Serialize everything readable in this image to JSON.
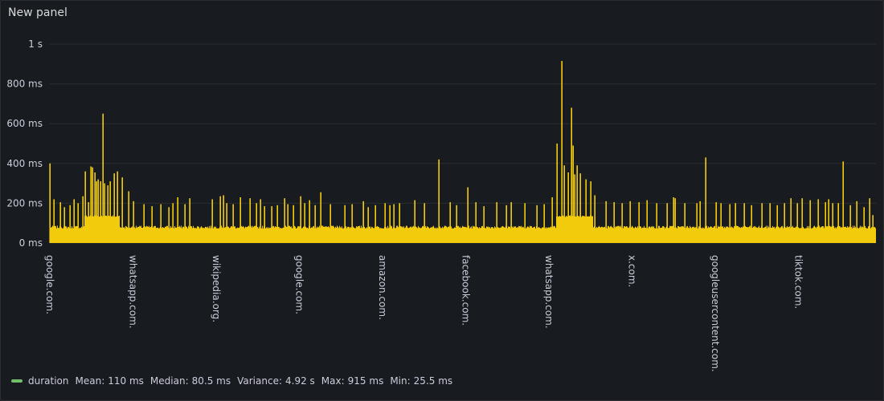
{
  "panel": {
    "title": "New panel"
  },
  "legend": {
    "series_name": "duration",
    "series_color": "#73bf69",
    "stats": [
      {
        "label": "Mean:",
        "value": "110 ms"
      },
      {
        "label": "Median:",
        "value": "80.5 ms"
      },
      {
        "label": "Variance:",
        "value": "4.92 s"
      },
      {
        "label": "Max:",
        "value": "915 ms"
      },
      {
        "label": "Min:",
        "value": "25.5 ms"
      }
    ]
  },
  "chart_data": {
    "type": "bar",
    "fill_color": "#f2cc0c",
    "ylim": [
      0,
      1000
    ],
    "y_ticks": [
      {
        "value": 0,
        "label": "0 ms"
      },
      {
        "value": 200,
        "label": "200 ms"
      },
      {
        "value": 400,
        "label": "400 ms"
      },
      {
        "value": 600,
        "label": "600 ms"
      },
      {
        "value": 800,
        "label": "800 ms"
      },
      {
        "value": 1000,
        "label": "1 s"
      }
    ],
    "x_tick_labels": [
      "google.com.",
      "whatsapp.com.",
      "wikipedia.org.",
      "google.com.",
      "amazon.com.",
      "facebook.com.",
      "whatsapp.com.",
      "x.com.",
      "googleusercontent.com.",
      "tiktok.com."
    ],
    "baseline_ms": 80,
    "plateaus": [
      {
        "from_index": 43,
        "to_index": 86,
        "value": 135
      },
      {
        "from_index": 630,
        "to_index": 675,
        "value": 135
      }
    ],
    "spikes": [
      [
        0,
        400
      ],
      [
        5,
        220
      ],
      [
        13,
        205
      ],
      [
        18,
        180
      ],
      [
        25,
        190
      ],
      [
        30,
        220
      ],
      [
        35,
        200
      ],
      [
        41,
        235
      ],
      [
        44,
        360
      ],
      [
        48,
        205
      ],
      [
        51,
        385
      ],
      [
        53,
        380
      ],
      [
        56,
        355
      ],
      [
        58,
        310
      ],
      [
        60,
        320
      ],
      [
        63,
        310
      ],
      [
        66,
        650
      ],
      [
        68,
        300
      ],
      [
        72,
        290
      ],
      [
        75,
        310
      ],
      [
        80,
        350
      ],
      [
        84,
        360
      ],
      [
        90,
        330
      ],
      [
        98,
        260
      ],
      [
        104,
        210
      ],
      [
        117,
        195
      ],
      [
        127,
        185
      ],
      [
        138,
        195
      ],
      [
        148,
        180
      ],
      [
        153,
        200
      ],
      [
        159,
        230
      ],
      [
        168,
        195
      ],
      [
        174,
        225
      ],
      [
        202,
        220
      ],
      [
        212,
        235
      ],
      [
        216,
        240
      ],
      [
        220,
        200
      ],
      [
        228,
        195
      ],
      [
        237,
        230
      ],
      [
        249,
        225
      ],
      [
        257,
        200
      ],
      [
        262,
        220
      ],
      [
        267,
        185
      ],
      [
        276,
        185
      ],
      [
        283,
        190
      ],
      [
        292,
        225
      ],
      [
        296,
        195
      ],
      [
        303,
        190
      ],
      [
        312,
        235
      ],
      [
        317,
        200
      ],
      [
        323,
        215
      ],
      [
        330,
        190
      ],
      [
        337,
        255
      ],
      [
        349,
        195
      ],
      [
        367,
        190
      ],
      [
        376,
        195
      ],
      [
        390,
        210
      ],
      [
        396,
        180
      ],
      [
        405,
        190
      ],
      [
        417,
        200
      ],
      [
        423,
        190
      ],
      [
        428,
        195
      ],
      [
        435,
        200
      ],
      [
        454,
        215
      ],
      [
        466,
        200
      ],
      [
        484,
        420
      ],
      [
        498,
        205
      ],
      [
        506,
        190
      ],
      [
        520,
        280
      ],
      [
        530,
        205
      ],
      [
        540,
        185
      ],
      [
        556,
        205
      ],
      [
        568,
        190
      ],
      [
        574,
        205
      ],
      [
        591,
        200
      ],
      [
        606,
        190
      ],
      [
        615,
        195
      ],
      [
        625,
        230
      ],
      [
        631,
        500
      ],
      [
        637,
        915
      ],
      [
        640,
        390
      ],
      [
        645,
        355
      ],
      [
        649,
        680
      ],
      [
        651,
        490
      ],
      [
        653,
        345
      ],
      [
        656,
        390
      ],
      [
        660,
        350
      ],
      [
        667,
        320
      ],
      [
        673,
        310
      ],
      [
        678,
        240
      ],
      [
        692,
        210
      ],
      [
        702,
        205
      ],
      [
        712,
        200
      ],
      [
        722,
        210
      ],
      [
        733,
        205
      ],
      [
        743,
        215
      ],
      [
        755,
        200
      ],
      [
        768,
        200
      ],
      [
        776,
        230
      ],
      [
        778,
        225
      ],
      [
        790,
        200
      ],
      [
        805,
        200
      ],
      [
        809,
        210
      ],
      [
        816,
        430
      ],
      [
        829,
        205
      ],
      [
        835,
        200
      ],
      [
        846,
        195
      ],
      [
        853,
        200
      ],
      [
        864,
        200
      ],
      [
        873,
        190
      ],
      [
        886,
        200
      ],
      [
        896,
        200
      ],
      [
        905,
        190
      ],
      [
        914,
        200
      ],
      [
        922,
        225
      ],
      [
        930,
        200
      ],
      [
        936,
        225
      ],
      [
        946,
        215
      ],
      [
        956,
        220
      ],
      [
        965,
        205
      ],
      [
        969,
        220
      ],
      [
        974,
        200
      ],
      [
        981,
        200
      ],
      [
        987,
        410
      ],
      [
        996,
        190
      ],
      [
        1004,
        210
      ],
      [
        1013,
        180
      ],
      [
        1020,
        225
      ],
      [
        1024,
        140
      ]
    ]
  }
}
